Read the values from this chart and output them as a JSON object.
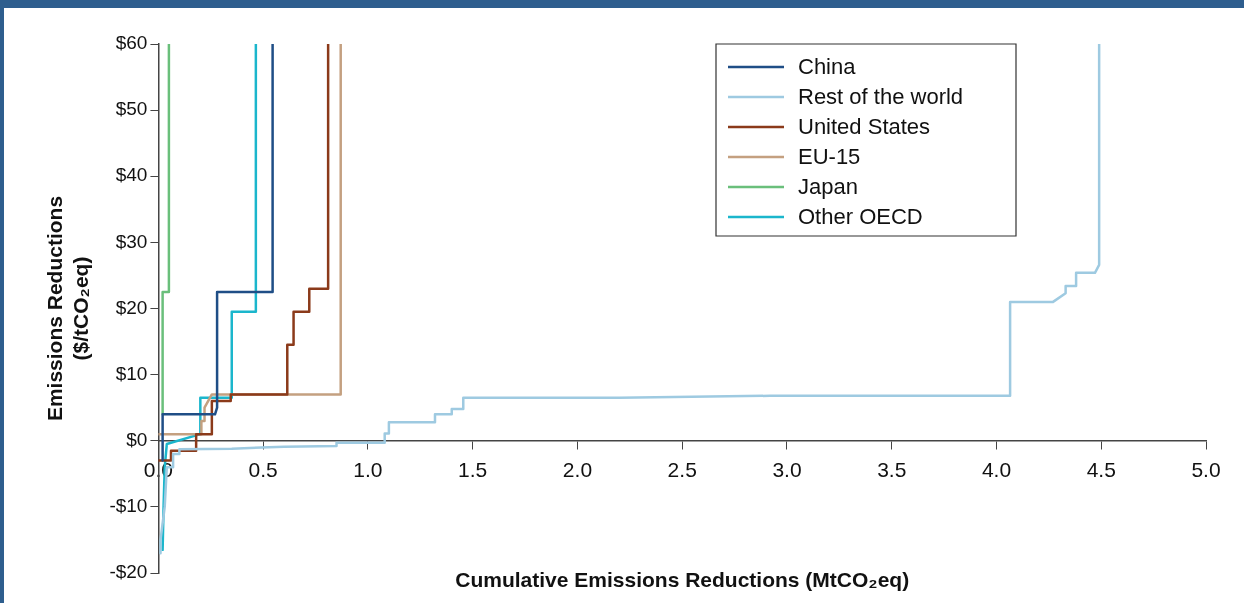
{
  "chart_data": {
    "type": "line",
    "xlabel": "Cumulative Emissions Reductions (MtCO₂eq)",
    "ylabel": "Emissions Reductions ($/tCO₂eq)",
    "xlim": [
      0,
      5
    ],
    "ylim": [
      -20,
      60
    ],
    "xticks": [
      {
        "value": 0,
        "label": "0.0"
      },
      {
        "value": 0.5,
        "label": "0.5"
      },
      {
        "value": 1,
        "label": "1.0"
      },
      {
        "value": 1.5,
        "label": "1.5"
      },
      {
        "value": 2,
        "label": "2.0"
      },
      {
        "value": 2.5,
        "label": "2.5"
      },
      {
        "value": 3,
        "label": "3.0"
      },
      {
        "value": 3.5,
        "label": "3.5"
      },
      {
        "value": 4,
        "label": "4.0"
      },
      {
        "value": 4.5,
        "label": "4.5"
      },
      {
        "value": 5,
        "label": "5.0"
      }
    ],
    "yticks": [
      {
        "value": -20,
        "label": "-$20"
      },
      {
        "value": -10,
        "label": "-$10"
      },
      {
        "value": 0,
        "label": "$0"
      },
      {
        "value": 10,
        "label": "$10"
      },
      {
        "value": 20,
        "label": "$20"
      },
      {
        "value": 30,
        "label": "$30"
      },
      {
        "value": 40,
        "label": "$40"
      },
      {
        "value": 50,
        "label": "$50"
      },
      {
        "value": 60,
        "label": "$60"
      }
    ],
    "grid": false,
    "legend": "top right",
    "line_style": "solid",
    "series": [
      {
        "name": "China",
        "color": "#1f4e86",
        "x": [
          0.02,
          0.02,
          0.27,
          0.28,
          0.28,
          0.545,
          0.545
        ],
        "values": [
          -3,
          4,
          4,
          5,
          22.5,
          22.5,
          60
        ]
      },
      {
        "name": "Rest of the world",
        "color": "#9ecae1",
        "x": [
          0.01,
          0.01,
          0.03,
          0.04,
          0.07,
          0.07,
          0.1,
          0.1,
          0.35,
          0.6,
          0.85,
          0.85,
          1.08,
          1.08,
          1.1,
          1.1,
          1.32,
          1.32,
          1.4,
          1.4,
          1.455,
          1.455,
          2.2,
          2.92,
          4.065,
          4.065,
          4.27,
          4.33,
          4.33,
          4.38,
          4.38,
          4.47,
          4.49,
          4.49
        ],
        "values": [
          -17,
          -15,
          -10,
          -4,
          -4,
          -2,
          -2,
          -1.3,
          -1.2,
          -0.9,
          -0.8,
          -0.3,
          -0.3,
          1.1,
          1.1,
          2.8,
          2.8,
          4,
          4,
          4.8,
          4.8,
          6.5,
          6.5,
          6.8,
          6.8,
          21,
          21,
          22.3,
          23.4,
          23.4,
          25.4,
          25.4,
          26.6,
          60
        ]
      },
      {
        "name": "United States",
        "color": "#8b3a1a",
        "x": [
          0,
          0.06,
          0.06,
          0.18,
          0.18,
          0.255,
          0.255,
          0.345,
          0.345,
          0.615,
          0.615,
          0.645,
          0.645,
          0.72,
          0.72,
          0.81,
          0.81
        ],
        "values": [
          -3,
          -3,
          -1.5,
          -1.5,
          1,
          1,
          6,
          6,
          7,
          7,
          14.5,
          14.5,
          19.5,
          19.5,
          23,
          23,
          60
        ]
      },
      {
        "name": "EU-15",
        "color": "#c4a080",
        "x": [
          0,
          0.205,
          0.205,
          0.22,
          0.22,
          0.255,
          0.87,
          0.87
        ],
        "values": [
          1,
          1,
          3,
          3,
          5,
          7,
          7,
          60
        ]
      },
      {
        "name": "Japan",
        "color": "#6abf7b",
        "x": [
          0.02,
          0.02,
          0.05,
          0.05
        ],
        "values": [
          4,
          22.5,
          22.5,
          60
        ]
      },
      {
        "name": "Other OECD",
        "color": "#1bb6cc",
        "x": [
          0.02,
          0.025,
          0.03,
          0.04,
          0.2,
          0.2,
          0.35,
          0.35,
          0.465,
          0.465
        ],
        "values": [
          -16.5,
          -9.5,
          -4,
          -0.5,
          1,
          6.5,
          6.5,
          19.5,
          19.5,
          60
        ]
      }
    ]
  }
}
